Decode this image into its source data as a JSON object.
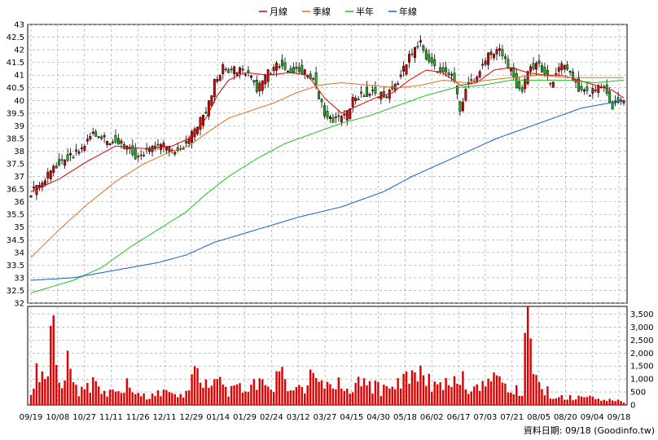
{
  "chart_data": [
    {
      "type": "candlestick",
      "title": "",
      "legend": {
        "placement": "top-center",
        "items": [
          {
            "name": "月線",
            "color": "#e00000"
          },
          {
            "name": "季線",
            "color": "#e07020"
          },
          {
            "name": "半年",
            "color": "#20c020"
          },
          {
            "name": "年線",
            "color": "#1060d0"
          }
        ]
      },
      "y_axis": {
        "min": 32,
        "max": 43,
        "step": 0.5,
        "tick_labels": [
          "32",
          "32.5",
          "33",
          "33.5",
          "34",
          "34.5",
          "35",
          "35.5",
          "36",
          "36.5",
          "37",
          "37.5",
          "38",
          "38.5",
          "39",
          "39.5",
          "40",
          "40.5",
          "41",
          "41.5",
          "42",
          "42.5",
          "43"
        ]
      },
      "x_axis": {
        "tick_labels": [
          "09/19",
          "10/08",
          "10/27",
          "11/11",
          "11/26",
          "12/11",
          "12/29",
          "01/14",
          "01/29",
          "02/24",
          "03/12",
          "03/27",
          "04/15",
          "04/30",
          "05/18",
          "06/02",
          "06/17",
          "07/03",
          "07/21",
          "08/05",
          "08/20",
          "09/04",
          "09/18"
        ]
      },
      "grid": true,
      "close_anchors": [
        [
          0,
          36.4
        ],
        [
          4,
          36.7
        ],
        [
          8,
          37.4
        ],
        [
          13,
          37.7
        ],
        [
          18,
          38.1
        ],
        [
          22,
          38.8
        ],
        [
          27,
          38.4
        ],
        [
          31,
          38.4
        ],
        [
          35,
          38.0
        ],
        [
          38,
          37.7
        ],
        [
          42,
          38.1
        ],
        [
          47,
          38.2
        ],
        [
          51,
          38.0
        ],
        [
          55,
          38.3
        ],
        [
          59,
          39.0
        ],
        [
          62,
          39.6
        ],
        [
          65,
          40.7
        ],
        [
          68,
          41.3
        ],
        [
          71,
          41.2
        ],
        [
          74,
          41.2
        ],
        [
          78,
          41.0
        ],
        [
          80,
          40.4
        ],
        [
          84,
          41.1
        ],
        [
          88,
          41.4
        ],
        [
          92,
          41.2
        ],
        [
          96,
          41.2
        ],
        [
          100,
          40.9
        ],
        [
          102,
          40.2
        ],
        [
          104,
          39.4
        ],
        [
          108,
          39.2
        ],
        [
          112,
          39.5
        ],
        [
          114,
          40.0
        ],
        [
          118,
          40.3
        ],
        [
          122,
          40.3
        ],
        [
          126,
          40.2
        ],
        [
          130,
          40.8
        ],
        [
          134,
          41.7
        ],
        [
          138,
          42.3
        ],
        [
          140,
          41.7
        ],
        [
          144,
          41.2
        ],
        [
          148,
          41.0
        ],
        [
          150,
          40.8
        ],
        [
          152,
          39.5
        ],
        [
          154,
          40.5
        ],
        [
          158,
          41.0
        ],
        [
          162,
          41.8
        ],
        [
          166,
          41.9
        ],
        [
          170,
          41.2
        ],
        [
          172,
          40.6
        ],
        [
          174,
          40.4
        ],
        [
          176,
          41.2
        ],
        [
          180,
          41.4
        ],
        [
          184,
          40.7
        ],
        [
          188,
          41.4
        ],
        [
          190,
          41.3
        ],
        [
          194,
          40.5
        ],
        [
          198,
          40.3
        ],
        [
          202,
          40.6
        ],
        [
          204,
          40.3
        ],
        [
          206,
          39.8
        ],
        [
          208,
          40.0
        ],
        [
          210,
          40.0
        ]
      ],
      "overlay_anchors": {
        "月線": [
          [
            0,
            36.4
          ],
          [
            10,
            36.9
          ],
          [
            20,
            37.6
          ],
          [
            30,
            38.2
          ],
          [
            40,
            38.1
          ],
          [
            50,
            38.2
          ],
          [
            56,
            38.5
          ],
          [
            62,
            39.3
          ],
          [
            66,
            40.2
          ],
          [
            70,
            40.8
          ],
          [
            76,
            41.1
          ],
          [
            84,
            41.0
          ],
          [
            92,
            41.1
          ],
          [
            98,
            41.0
          ],
          [
            104,
            40.1
          ],
          [
            110,
            39.5
          ],
          [
            116,
            39.8
          ],
          [
            122,
            40.1
          ],
          [
            128,
            40.3
          ],
          [
            134,
            40.8
          ],
          [
            140,
            41.2
          ],
          [
            146,
            41.1
          ],
          [
            152,
            40.6
          ],
          [
            158,
            40.7
          ],
          [
            164,
            41.2
          ],
          [
            170,
            41.3
          ],
          [
            176,
            41.1
          ],
          [
            182,
            41.0
          ],
          [
            188,
            41.0
          ],
          [
            194,
            40.8
          ],
          [
            200,
            40.6
          ],
          [
            206,
            40.4
          ],
          [
            210,
            40.1
          ]
        ],
        "季線": [
          [
            0,
            33.8
          ],
          [
            10,
            34.9
          ],
          [
            20,
            35.9
          ],
          [
            30,
            36.8
          ],
          [
            40,
            37.5
          ],
          [
            50,
            38.0
          ],
          [
            56,
            38.2
          ],
          [
            62,
            38.7
          ],
          [
            70,
            39.3
          ],
          [
            78,
            39.6
          ],
          [
            86,
            39.9
          ],
          [
            94,
            40.3
          ],
          [
            102,
            40.6
          ],
          [
            110,
            40.7
          ],
          [
            120,
            40.6
          ],
          [
            130,
            40.5
          ],
          [
            138,
            40.6
          ],
          [
            146,
            40.8
          ],
          [
            154,
            40.7
          ],
          [
            162,
            40.8
          ],
          [
            170,
            40.9
          ],
          [
            180,
            41.0
          ],
          [
            190,
            40.9
          ],
          [
            200,
            40.9
          ],
          [
            210,
            40.9
          ]
        ],
        "半年": [
          [
            0,
            32.4
          ],
          [
            15,
            32.9
          ],
          [
            25,
            33.4
          ],
          [
            35,
            34.2
          ],
          [
            45,
            34.9
          ],
          [
            55,
            35.6
          ],
          [
            62,
            36.3
          ],
          [
            70,
            37.0
          ],
          [
            80,
            37.7
          ],
          [
            90,
            38.3
          ],
          [
            100,
            38.7
          ],
          [
            110,
            39.1
          ],
          [
            120,
            39.4
          ],
          [
            130,
            39.8
          ],
          [
            140,
            40.2
          ],
          [
            150,
            40.5
          ],
          [
            160,
            40.6
          ],
          [
            170,
            40.8
          ],
          [
            180,
            40.8
          ],
          [
            190,
            40.8
          ],
          [
            200,
            40.7
          ],
          [
            210,
            40.8
          ]
        ],
        "年線": [
          [
            0,
            32.9
          ],
          [
            15,
            33.0
          ],
          [
            30,
            33.3
          ],
          [
            45,
            33.6
          ],
          [
            55,
            33.9
          ],
          [
            65,
            34.4
          ],
          [
            80,
            34.9
          ],
          [
            95,
            35.4
          ],
          [
            110,
            35.8
          ],
          [
            125,
            36.4
          ],
          [
            135,
            37.0
          ],
          [
            145,
            37.5
          ],
          [
            155,
            38.0
          ],
          [
            165,
            38.5
          ],
          [
            175,
            38.9
          ],
          [
            185,
            39.3
          ],
          [
            195,
            39.7
          ],
          [
            205,
            39.9
          ],
          [
            210,
            40.0
          ]
        ]
      },
      "volume_range": [
        0,
        3.5
      ]
    },
    {
      "type": "bar",
      "title": "",
      "y_axis": {
        "min": 0,
        "max": 3800,
        "tick_labels": [
          "0",
          "500",
          "1,000",
          "1,500",
          "2,000",
          "2,500",
          "3,000",
          "3,500"
        ],
        "tick_values": [
          0,
          500,
          1000,
          1500,
          2000,
          2500,
          3000,
          3500
        ]
      },
      "color": "#e00000",
      "volume_anchors": [
        [
          0,
          700
        ],
        [
          2,
          1300
        ],
        [
          4,
          1100
        ],
        [
          6,
          2000
        ],
        [
          8,
          2500
        ],
        [
          10,
          900
        ],
        [
          12,
          1200
        ],
        [
          13,
          2200
        ],
        [
          15,
          700
        ],
        [
          18,
          500
        ],
        [
          22,
          800
        ],
        [
          26,
          600
        ],
        [
          30,
          400
        ],
        [
          34,
          800
        ],
        [
          38,
          500
        ],
        [
          42,
          300
        ],
        [
          46,
          600
        ],
        [
          50,
          400
        ],
        [
          54,
          400
        ],
        [
          58,
          1100
        ],
        [
          62,
          700
        ],
        [
          66,
          900
        ],
        [
          70,
          500
        ],
        [
          74,
          600
        ],
        [
          78,
          700
        ],
        [
          82,
          900
        ],
        [
          86,
          800
        ],
        [
          88,
          1300
        ],
        [
          92,
          700
        ],
        [
          96,
          600
        ],
        [
          100,
          1100
        ],
        [
          104,
          700
        ],
        [
          108,
          800
        ],
        [
          112,
          600
        ],
        [
          116,
          800
        ],
        [
          120,
          700
        ],
        [
          124,
          600
        ],
        [
          128,
          800
        ],
        [
          132,
          1000
        ],
        [
          136,
          1200
        ],
        [
          138,
          1300
        ],
        [
          140,
          900
        ],
        [
          144,
          800
        ],
        [
          148,
          700
        ],
        [
          152,
          1000
        ],
        [
          156,
          700
        ],
        [
          160,
          800
        ],
        [
          164,
          900
        ],
        [
          168,
          700
        ],
        [
          172,
          600
        ],
        [
          174,
          600
        ],
        [
          176,
          3800
        ],
        [
          178,
          1700
        ],
        [
          180,
          900
        ],
        [
          184,
          400
        ],
        [
          188,
          300
        ],
        [
          192,
          300
        ],
        [
          196,
          300
        ],
        [
          200,
          200
        ],
        [
          204,
          200
        ],
        [
          208,
          200
        ],
        [
          210,
          100
        ]
      ]
    }
  ],
  "footer": {
    "source": "資料日期: 09/18  (Goodinfo.tw)"
  }
}
